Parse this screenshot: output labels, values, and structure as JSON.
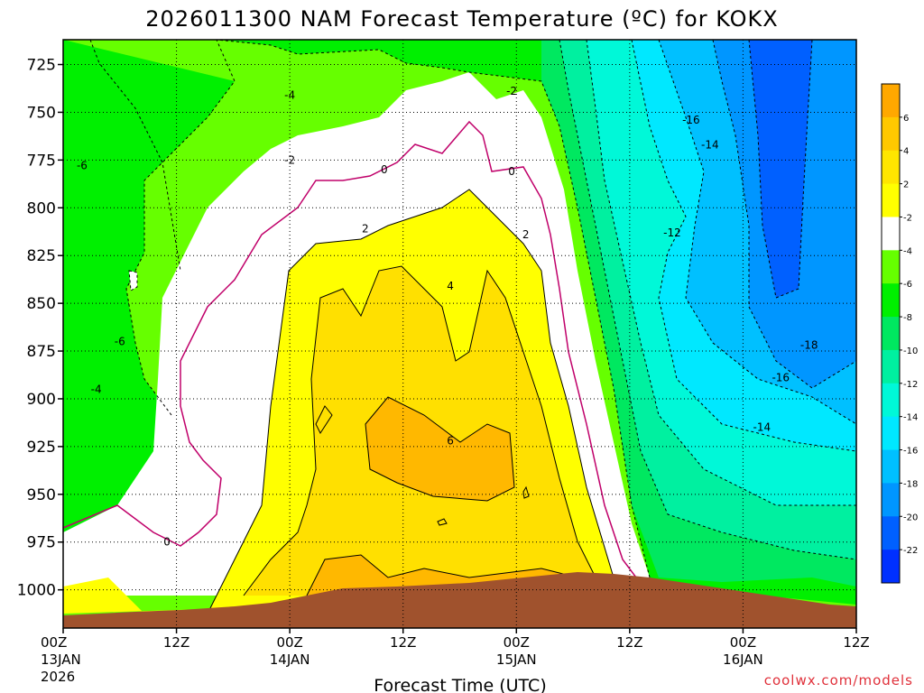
{
  "chart_data": {
    "type": "heatmap",
    "title": "2026011300 NAM Forecast Temperature (ºC) for KOKX",
    "xlabel": "Forecast Time (UTC)",
    "ylabel": "",
    "credit": "coolwx.com/models",
    "y_ticks": [
      725,
      750,
      775,
      800,
      825,
      850,
      875,
      900,
      925,
      950,
      975,
      1000
    ],
    "y_range_hpa": [
      712,
      1020
    ],
    "x_range_hours": [
      0,
      84
    ],
    "x_ticks": [
      {
        "hour": 0,
        "line1": "00Z",
        "line2": "13JAN",
        "line3": "2026"
      },
      {
        "hour": 12,
        "line1": "12Z",
        "line2": "",
        "line3": ""
      },
      {
        "hour": 24,
        "line1": "00Z",
        "line2": "14JAN",
        "line3": ""
      },
      {
        "hour": 36,
        "line1": "12Z",
        "line2": "",
        "line3": ""
      },
      {
        "hour": 48,
        "line1": "00Z",
        "line2": "15JAN",
        "line3": ""
      },
      {
        "hour": 60,
        "line1": "12Z",
        "line2": "",
        "line3": ""
      },
      {
        "hour": 72,
        "line1": "00Z",
        "line2": "16JAN",
        "line3": ""
      },
      {
        "hour": 84,
        "line1": "12Z",
        "line2": "",
        "line3": ""
      }
    ],
    "grid": true,
    "colorbar": {
      "levels": [
        6,
        4,
        2,
        -2,
        -4,
        -6,
        -8,
        -10,
        -12,
        -14,
        -16,
        -18,
        -20,
        -22
      ],
      "colors": [
        "#ffa800",
        "#ffc800",
        "#ffe600",
        "#ffff00",
        "#ffffff",
        "#66ff00",
        "#00f000",
        "#00e860",
        "#00f0a0",
        "#00f8d8",
        "#00e8ff",
        "#00c0ff",
        "#0096ff",
        "#0060ff",
        "#0030ff"
      ]
    },
    "contour_labels": [
      {
        "value": "-4",
        "hour": 24,
        "hpa": 741
      },
      {
        "value": "-2",
        "hour": 47.5,
        "hpa": 739
      },
      {
        "value": "-16",
        "hour": 66.5,
        "hpa": 754
      },
      {
        "value": "-14",
        "hour": 68.5,
        "hpa": 767
      },
      {
        "value": "-2",
        "hour": 24,
        "hpa": 775
      },
      {
        "value": "0",
        "hour": 34,
        "hpa": 780
      },
      {
        "value": "0",
        "hour": 47.5,
        "hpa": 781
      },
      {
        "value": "-6",
        "hour": 2,
        "hpa": 778
      },
      {
        "value": "-12",
        "hour": 64.5,
        "hpa": 813
      },
      {
        "value": "2",
        "hour": 32,
        "hpa": 811
      },
      {
        "value": "2",
        "hour": 49,
        "hpa": 814
      },
      {
        "value": "4",
        "hour": 41,
        "hpa": 841
      },
      {
        "value": "-6",
        "hour": 6,
        "hpa": 870
      },
      {
        "value": "-18",
        "hour": 79,
        "hpa": 872
      },
      {
        "value": "-4",
        "hour": 3.5,
        "hpa": 895
      },
      {
        "value": "-16",
        "hour": 76,
        "hpa": 889
      },
      {
        "value": "-14",
        "hour": 74,
        "hpa": 915
      },
      {
        "value": "6",
        "hour": 41,
        "hpa": 922
      },
      {
        "value": "0",
        "hour": 11,
        "hpa": 975
      }
    ]
  }
}
